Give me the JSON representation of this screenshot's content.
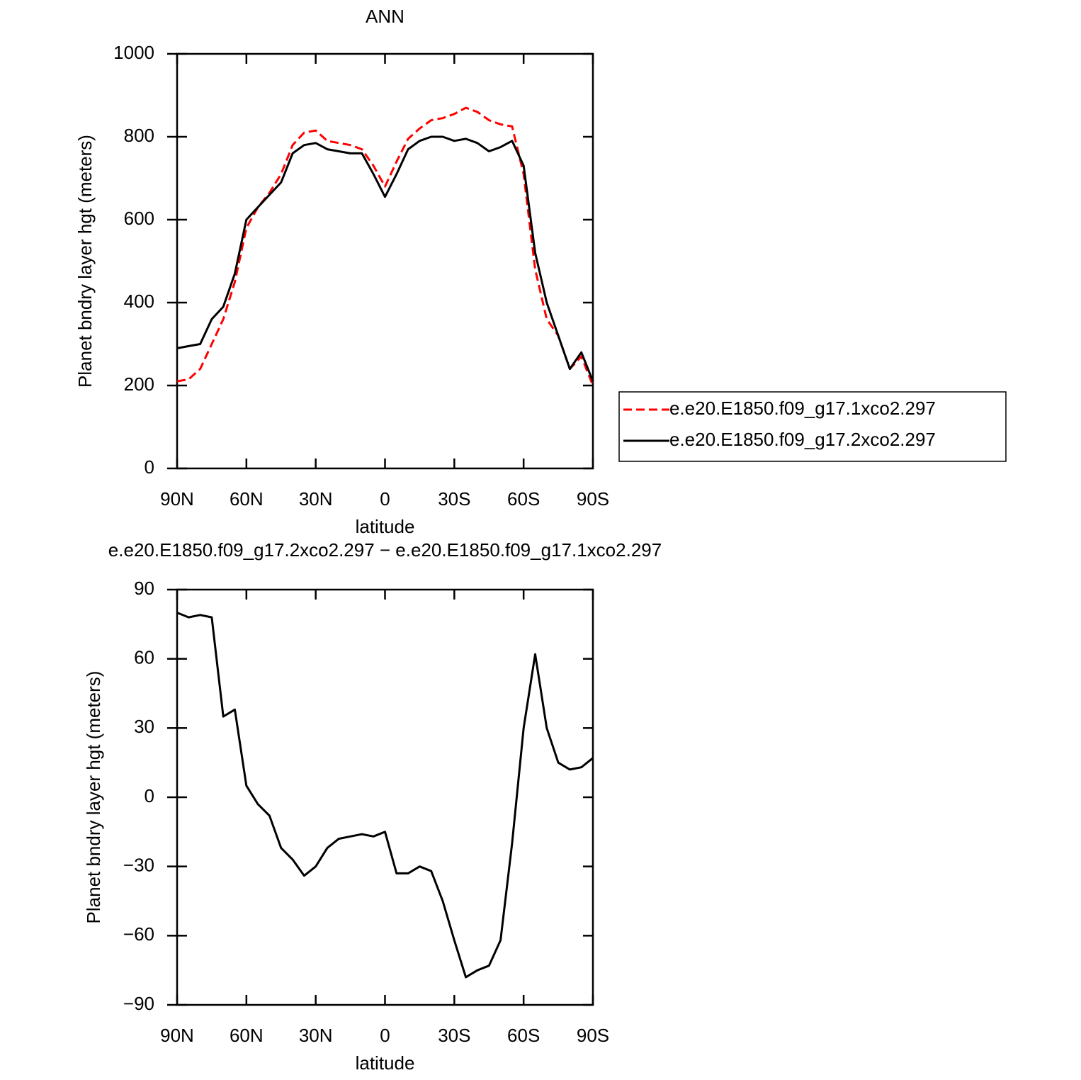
{
  "chart_data": [
    {
      "type": "line",
      "title": "ANN",
      "xlabel": "latitude",
      "ylabel": "Planet bndry layer hgt (meters)",
      "x": [
        90,
        85,
        80,
        75,
        70,
        65,
        60,
        55,
        50,
        45,
        40,
        35,
        30,
        25,
        20,
        15,
        10,
        5,
        0,
        -5,
        -10,
        -15,
        -20,
        -25,
        -30,
        -35,
        -40,
        -45,
        -50,
        -55,
        -60,
        -65,
        -70,
        -75,
        -80,
        -85,
        -90
      ],
      "xlim": [
        90,
        -90
      ],
      "xticks": [
        {
          "value": 90,
          "label": "90N"
        },
        {
          "value": 60,
          "label": "60N"
        },
        {
          "value": 30,
          "label": "30N"
        },
        0,
        {
          "value": -30,
          "label": "30S"
        },
        {
          "value": -60,
          "label": "60S"
        },
        {
          "value": -90,
          "label": "90S"
        }
      ],
      "ylim": [
        0,
        1000
      ],
      "yticks": [
        0,
        200,
        400,
        600,
        800,
        1000
      ],
      "legend": "outside-right",
      "series": [
        {
          "name": "e.e20.E1850.f09_g17.1xco2.297",
          "color": "#ff0000",
          "dashed": true,
          "values": [
            210,
            215,
            240,
            300,
            360,
            450,
            580,
            630,
            665,
            710,
            780,
            810,
            815,
            790,
            785,
            780,
            770,
            730,
            680,
            740,
            795,
            820,
            840,
            845,
            855,
            870,
            860,
            840,
            830,
            825,
            710,
            480,
            360,
            320,
            240,
            270,
            200
          ]
        },
        {
          "name": "e.e20.E1850.f09_g17.2xco2.297",
          "color": "#000000",
          "dashed": false,
          "values": [
            290,
            295,
            300,
            360,
            390,
            470,
            600,
            630,
            660,
            690,
            760,
            780,
            785,
            770,
            765,
            760,
            760,
            710,
            655,
            710,
            770,
            790,
            800,
            800,
            790,
            795,
            785,
            765,
            775,
            790,
            730,
            520,
            400,
            320,
            240,
            280,
            210
          ]
        }
      ]
    },
    {
      "type": "line",
      "title": "e.e20.E1850.f09_g17.2xco2.297 − e.e20.E1850.f09_g17.1xco2.297",
      "xlabel": "latitude",
      "ylabel": "Planet bndry layer hgt (meters)",
      "x": [
        90,
        85,
        80,
        75,
        70,
        65,
        60,
        55,
        50,
        45,
        40,
        35,
        30,
        25,
        20,
        15,
        10,
        5,
        0,
        -5,
        -10,
        -15,
        -20,
        -25,
        -30,
        -35,
        -40,
        -45,
        -50,
        -55,
        -60,
        -65,
        -70,
        -75,
        -80,
        -85,
        -90
      ],
      "xlim": [
        90,
        -90
      ],
      "xticks": [
        {
          "value": 90,
          "label": "90N"
        },
        {
          "value": 60,
          "label": "60N"
        },
        {
          "value": 30,
          "label": "30N"
        },
        0,
        {
          "value": -30,
          "label": "30S"
        },
        {
          "value": -60,
          "label": "60S"
        },
        {
          "value": -90,
          "label": "90S"
        }
      ],
      "ylim": [
        -90,
        90
      ],
      "yticks": [
        {
          "value": -90,
          "label": "−90"
        },
        {
          "value": -60,
          "label": "−60"
        },
        {
          "value": -30,
          "label": "−30"
        },
        0,
        30,
        60,
        90
      ],
      "series": [
        {
          "color": "#000000",
          "dashed": false,
          "values": [
            80,
            78,
            79,
            78,
            35,
            38,
            5,
            -3,
            -8,
            -22,
            -27,
            -34,
            -30,
            -22,
            -18,
            -17,
            -16,
            -17,
            -15,
            -33,
            -33,
            -30,
            -32,
            -45,
            -62,
            -78,
            -75,
            -73,
            -62,
            -20,
            30,
            62,
            30,
            15,
            12,
            13,
            17
          ]
        }
      ]
    }
  ]
}
